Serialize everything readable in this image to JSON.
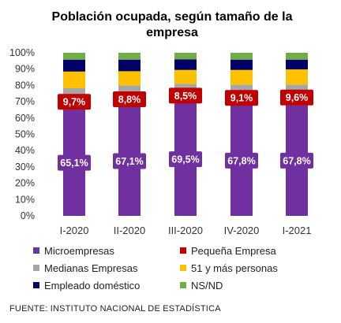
{
  "title_line1": "Población ocupada, según tamaño de la",
  "title_line2": "empresa",
  "source": "FUENTE: INSTITUTO NACIONAL DE ESTADÍSTICA",
  "chart_data": {
    "type": "bar",
    "stacked": true,
    "percent": true,
    "categories": [
      "I-2020",
      "II-2020",
      "III-2020",
      "IV-2020",
      "I-2021"
    ],
    "ylim": [
      0,
      100
    ],
    "yticks": [
      "0%",
      "10%",
      "20%",
      "30%",
      "40%",
      "50%",
      "60%",
      "70%",
      "80%",
      "90%",
      "100%"
    ],
    "legend_position": "bottom",
    "series": [
      {
        "name": "Microempresas",
        "color": "#7030A0",
        "values": [
          65.1,
          67.1,
          69.5,
          67.8,
          67.8
        ],
        "labels": [
          "65,1%",
          "67,1%",
          "69,5%",
          "67,8%",
          "67,8%"
        ]
      },
      {
        "name": "Pequeña Empresa",
        "color": "#C00000",
        "values": [
          9.7,
          8.8,
          8.5,
          9.1,
          9.6
        ],
        "labels": [
          "9,7%",
          "8,8%",
          "8,5%",
          "9,1%",
          "9,6%"
        ]
      },
      {
        "name": "Medianas Empresas",
        "color": "#A6A6A6",
        "values": [
          3.5,
          4.0,
          3.0,
          3.6,
          3.1
        ]
      },
      {
        "name": "51 y más personas",
        "color": "#FFC000",
        "values": [
          10.2,
          8.8,
          8.5,
          9.0,
          9.3
        ]
      },
      {
        "name": "Empleado doméstico",
        "color": "#000066",
        "values": [
          7.3,
          7.1,
          6.5,
          6.3,
          6.0
        ]
      },
      {
        "name": "NS/ND",
        "color": "#70AD47",
        "values": [
          4.2,
          4.2,
          4.0,
          4.2,
          4.2
        ]
      }
    ]
  }
}
